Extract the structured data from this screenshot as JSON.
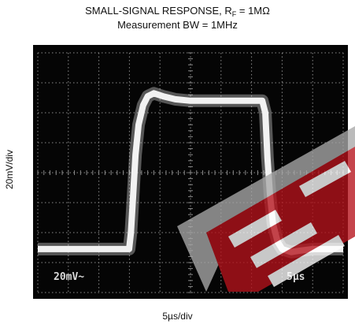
{
  "title": {
    "line1_main": "SMALL-SIGNAL RESPONSE, R",
    "line1_sub": "F",
    "line1_rest": " = 1MΩ",
    "line2": "Measurement BW = 1MHz"
  },
  "chart_data": {
    "type": "line",
    "xlabel": "5µs/div",
    "ylabel": "20mV/div",
    "x_units": "divisions",
    "y_units": "divisions",
    "xlim": [
      0,
      10
    ],
    "ylim": [
      -4,
      4
    ],
    "grid": true,
    "series": [
      {
        "x": [
          0,
          2.99,
          3.05,
          3.12,
          3.2,
          3.3,
          3.45,
          3.6,
          3.8,
          4.1,
          4.5,
          5,
          6,
          7,
          7.35,
          7.45,
          7.52,
          7.6,
          7.7,
          7.85,
          8.0,
          8.3,
          8.6,
          9,
          10
        ],
        "y": [
          -2.55,
          -2.55,
          -2.0,
          -0.8,
          0.6,
          1.6,
          2.25,
          2.55,
          2.65,
          2.55,
          2.45,
          2.4,
          2.4,
          2.4,
          2.4,
          2.0,
          0.5,
          -0.7,
          -1.7,
          -2.3,
          -2.55,
          -2.65,
          -2.6,
          -2.55,
          -2.55
        ]
      }
    ],
    "screen_readouts": {
      "channel": "20mV~",
      "timebase": "5µs"
    }
  },
  "colors": {
    "trace": "#f2f2f2",
    "grid": "#8a8a8a",
    "screen": "#050505",
    "watermark_red": "#b5121b",
    "watermark_gray": "#a8a8a8"
  },
  "watermark": {
    "type": "logo",
    "color": "#b5121b"
  }
}
